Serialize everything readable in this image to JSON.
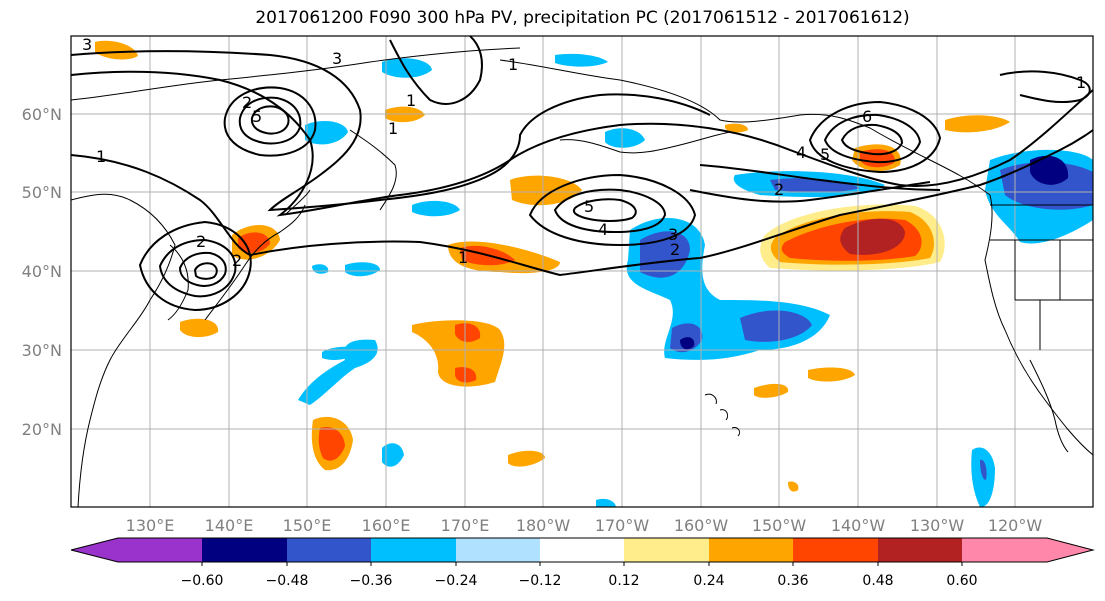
{
  "title": "2017061200 F090 300 hPa PV, precipitation PC (2017061512 - 2017061612)",
  "lat_labels": [
    "60°N",
    "50°N",
    "40°N",
    "30°N",
    "20°N"
  ],
  "lon_labels": [
    "130°E",
    "140°E",
    "150°E",
    "160°E",
    "170°E",
    "180°W",
    "170°W",
    "160°W",
    "150°W",
    "140°W",
    "130°W",
    "120°W"
  ],
  "colorbar": {
    "tick_labels": [
      "−0.60",
      "−0.48",
      "−0.36",
      "−0.24",
      "−0.12",
      "0.12",
      "0.24",
      "0.36",
      "0.48",
      "0.60"
    ],
    "colors": [
      "#9933cc",
      "#000080",
      "#3355cc",
      "#00bfff",
      "#b0e2ff",
      "#ffffff",
      "#ffec8b",
      "#ffa500",
      "#ff4500",
      "#b22222",
      "#ff88aa"
    ]
  },
  "contour_labels": [
    "3",
    "3",
    "1",
    "1",
    "2",
    "6",
    "1",
    "5",
    "4",
    "5",
    "1",
    "2",
    "3",
    "2",
    "4",
    "5",
    "1",
    "1",
    "2",
    "2"
  ]
}
